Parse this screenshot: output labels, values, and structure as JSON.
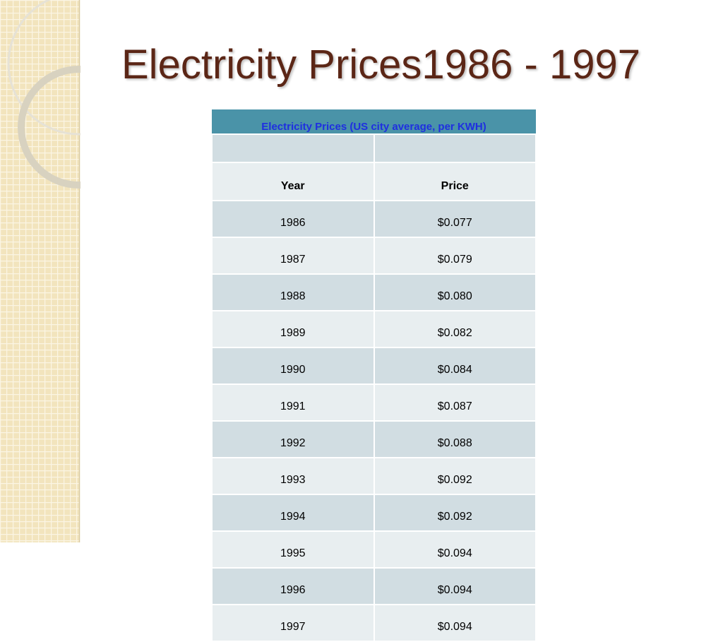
{
  "title": "Electricity Prices1986 - 1997",
  "table": {
    "caption": "Electricity Prices (US city average, per KWH)",
    "header": [
      "Year",
      "Price"
    ],
    "rows": [
      [
        "1986",
        "$0.077"
      ],
      [
        "1987",
        "$0.079"
      ],
      [
        "1988",
        "$0.080"
      ],
      [
        "1989",
        "$0.082"
      ],
      [
        "1990",
        "$0.084"
      ],
      [
        "1991",
        "$0.087"
      ],
      [
        "1992",
        "$0.088"
      ],
      [
        "1993",
        "$0.092"
      ],
      [
        "1994",
        "$0.092"
      ],
      [
        "1995",
        "$0.094"
      ],
      [
        "1996",
        "$0.094"
      ],
      [
        "1997",
        "$0.094"
      ]
    ]
  }
}
